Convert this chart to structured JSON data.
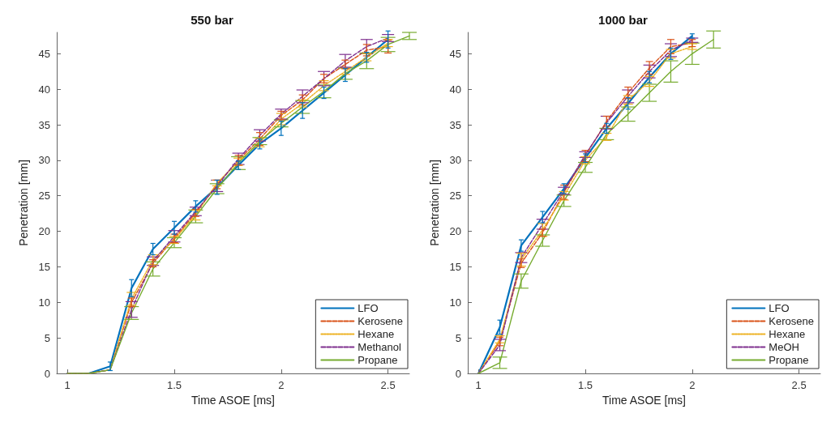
{
  "chart_data": [
    {
      "type": "line",
      "title": "550 bar",
      "xlabel": "Time ASOE [ms]",
      "ylabel": "Penetration [mm]",
      "xlim": [
        0.95,
        2.6
      ],
      "ylim": [
        0,
        48
      ],
      "xticks": [
        1,
        1.5,
        2,
        2.5
      ],
      "yticks": [
        0,
        5,
        10,
        15,
        20,
        25,
        30,
        35,
        40,
        45
      ],
      "grid": false,
      "legend": "bottom right",
      "marker": "none",
      "series": [
        {
          "name": "LFO",
          "color": "#0072bd",
          "line_style": "solid",
          "x": [
            1,
            1.1,
            1.2,
            1.3,
            1.4,
            1.5,
            1.6,
            1.7,
            1.8,
            1.9,
            2,
            2.1,
            2.2,
            2.3,
            2.4,
            2.5
          ],
          "values": [
            0,
            0,
            1,
            12,
            17.5,
            20.5,
            23.5,
            26.2,
            29.3,
            32.3,
            34.5,
            37,
            39.5,
            42,
            44.5,
            47
          ],
          "errors": [
            null,
            null,
            0.6,
            1.2,
            0.8,
            0.9,
            0.8,
            1,
            0.6,
            0.7,
            1,
            1.1,
            0.8,
            0.9,
            0.7,
            1.2
          ]
        },
        {
          "name": "Kerosene",
          "color": "#d95319",
          "line_style": "dashed",
          "x": [
            1,
            1.1,
            1.2,
            1.3,
            1.4,
            1.5,
            1.6,
            1.7,
            1.8,
            1.9,
            2,
            2.1,
            2.2,
            2.3,
            2.4,
            2.5
          ],
          "values": [
            0,
            0,
            0.5,
            10,
            15.5,
            19,
            22.6,
            26.6,
            30,
            33,
            36.3,
            38.5,
            41.5,
            43.5,
            45.5,
            46
          ],
          "errors": [
            null,
            null,
            null,
            0.6,
            0.5,
            0.6,
            0.5,
            0.6,
            0.7,
            0.9,
            0.6,
            0.7,
            0.6,
            0.6,
            0.8,
            0.9
          ]
        },
        {
          "name": "Hexane",
          "color": "#edb120",
          "line_style": "dotted",
          "x": [
            1,
            1.1,
            1.2,
            1.3,
            1.4,
            1.5,
            1.6,
            1.7,
            1.8,
            1.9,
            2,
            2.1,
            2.2,
            2.3,
            2.4,
            2.5
          ],
          "values": [
            0,
            0,
            0.5,
            10.5,
            16,
            18.8,
            22.3,
            26.8,
            29.8,
            32.5,
            35.8,
            38,
            40.5,
            42.5,
            44.5,
            46.5
          ],
          "errors": [
            null,
            null,
            null,
            0.9,
            0.7,
            0.5,
            0.7,
            0.4,
            0.5,
            0.6,
            0.8,
            0.5,
            0.7,
            0.4,
            0.5,
            0.5
          ]
        },
        {
          "name": "Methanol",
          "color": "#7e2f8e",
          "line_style": "dashed",
          "x": [
            1,
            1.1,
            1.2,
            1.3,
            1.4,
            1.5,
            1.6,
            1.7,
            1.8,
            1.9,
            2,
            2.1,
            2.2,
            2.3,
            2.4,
            2.5
          ],
          "values": [
            0,
            0,
            0.5,
            9,
            15.8,
            19.3,
            22.8,
            26.4,
            30.2,
            33.5,
            36.5,
            39,
            41.5,
            44,
            46,
            47.2
          ],
          "errors": [
            null,
            null,
            null,
            1.1,
            0.6,
            0.8,
            0.6,
            0.8,
            0.8,
            0.8,
            0.7,
            0.9,
            1,
            0.9,
            1,
            0.5
          ]
        },
        {
          "name": "Propane",
          "color": "#77ac30",
          "line_style": "solid",
          "x": [
            1,
            1.1,
            1.2,
            1.3,
            1.4,
            1.5,
            1.6,
            1.7,
            1.8,
            1.9,
            2,
            2.1,
            2.2,
            2.3,
            2.4,
            2.5,
            2.6
          ],
          "values": [
            0,
            0,
            0.5,
            8.5,
            14.7,
            18.4,
            22.1,
            26,
            29.6,
            32.7,
            35.2,
            37.5,
            39.7,
            42.2,
            44,
            46.3,
            47.5
          ],
          "errors": [
            null,
            null,
            null,
            0.9,
            1,
            0.7,
            0.9,
            0.7,
            0.9,
            0.5,
            0.5,
            0.9,
            0.9,
            0.8,
            1.1,
            1,
            0.5
          ]
        }
      ]
    },
    {
      "type": "line",
      "title": "1000 bar",
      "xlabel": "Time ASOE [ms]",
      "ylabel": "Penetration [mm]",
      "xlim": [
        0.95,
        2.6
      ],
      "ylim": [
        0,
        48
      ],
      "xticks": [
        1,
        1.5,
        2,
        2.5
      ],
      "yticks": [
        0,
        5,
        10,
        15,
        20,
        25,
        30,
        35,
        40,
        45
      ],
      "grid": false,
      "legend": "bottom right",
      "marker": "none",
      "series": [
        {
          "name": "LFO",
          "color": "#0072bd",
          "line_style": "solid",
          "x": [
            1,
            1.1,
            1.2,
            1.3,
            1.4,
            1.5,
            1.6,
            1.7,
            1.8,
            1.9,
            2
          ],
          "values": [
            0,
            6.5,
            18,
            22,
            26,
            30.3,
            34.5,
            38,
            41.7,
            45,
            47.5
          ],
          "errors": [
            null,
            1,
            0.8,
            0.8,
            0.7,
            0.6,
            0.7,
            0.8,
            0.8,
            0.8,
            0.3
          ]
        },
        {
          "name": "Kerosene",
          "color": "#d95319",
          "line_style": "dashed",
          "x": [
            1,
            1.1,
            1.2,
            1.3,
            1.4,
            1.5,
            1.6,
            1.7,
            1.8,
            1.9,
            2
          ],
          "values": [
            0,
            4.5,
            15.5,
            19.8,
            25.5,
            30.6,
            35.5,
            39.5,
            43,
            46,
            46.5
          ],
          "errors": [
            null,
            0.6,
            0.6,
            0.5,
            1,
            0.8,
            0.7,
            0.8,
            0.9,
            1,
            0.5
          ]
        },
        {
          "name": "Hexane",
          "color": "#edb120",
          "line_style": "dotted",
          "x": [
            1,
            1.1,
            1.2,
            1.3,
            1.4,
            1.5,
            1.6,
            1.7,
            1.8,
            1.9,
            2
          ],
          "values": [
            0,
            4.8,
            16,
            20.2,
            25,
            30,
            33.3,
            38.5,
            41.1,
            45,
            46
          ],
          "errors": [
            null,
            0.5,
            0.9,
            0.9,
            0.6,
            0.5,
            0.5,
            0.6,
            0.7,
            0.6,
            0.4
          ]
        },
        {
          "name": "MeOH",
          "color": "#7e2f8e",
          "line_style": "dashed",
          "x": [
            1,
            1.1,
            1.2,
            1.3,
            1.4,
            1.5,
            1.6,
            1.7,
            1.8,
            1.9,
            2
          ],
          "values": [
            0,
            4,
            16.3,
            21,
            25.7,
            30.8,
            35.3,
            39,
            42.5,
            45.5,
            46.9
          ],
          "errors": [
            null,
            0.8,
            0.7,
            0.7,
            0.5,
            0.4,
            0.9,
            0.9,
            0.9,
            0.9,
            0.3
          ]
        },
        {
          "name": "Propane",
          "color": "#77ac30",
          "line_style": "solid",
          "x": [
            1,
            1.1,
            1.2,
            1.3,
            1.4,
            1.5,
            1.6,
            1.7,
            1.8,
            1.9,
            2,
            2.1
          ],
          "values": [
            0,
            1.5,
            13,
            18.7,
            24.3,
            29,
            33.7,
            36.5,
            39.5,
            42.5,
            45,
            47
          ],
          "errors": [
            null,
            0.8,
            1,
            0.8,
            0.8,
            0.7,
            0.8,
            1,
            1.2,
            1.5,
            1.5,
            1.2
          ]
        }
      ]
    }
  ]
}
